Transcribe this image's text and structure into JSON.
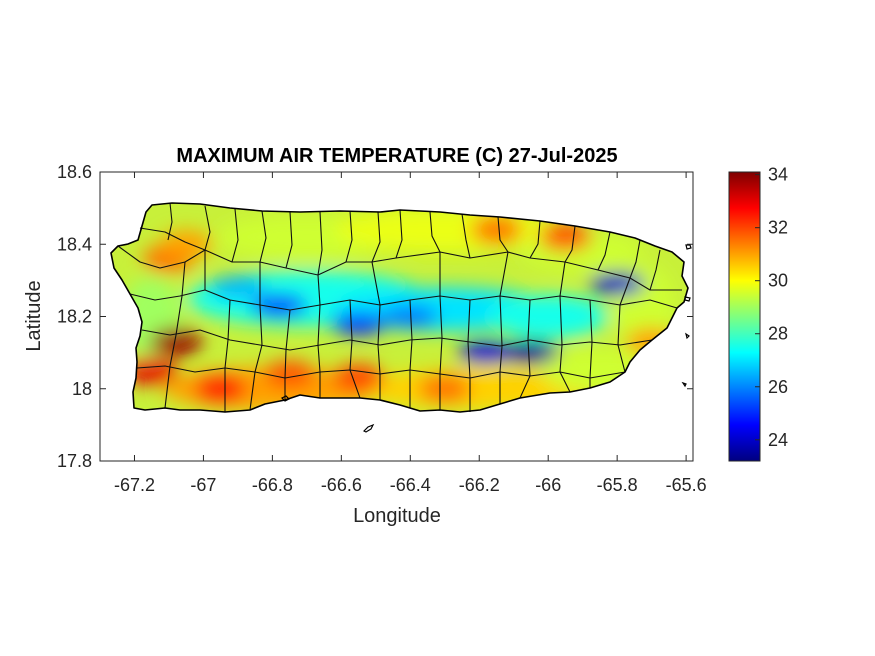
{
  "chart_data": {
    "type": "heatmap",
    "title": "MAXIMUM AIR TEMPERATURE (C) 27-Jul-2025",
    "xlabel": "Longitude",
    "ylabel": "Latitude",
    "xlim": [
      -67.3,
      -65.58
    ],
    "ylim": [
      17.8,
      18.6
    ],
    "x_ticks": [
      -67.2,
      -67,
      -66.8,
      -66.6,
      -66.4,
      -66.2,
      -66,
      -65.8,
      -65.6
    ],
    "x_tick_labels": [
      "-67.2",
      "-67",
      "-66.8",
      "-66.6",
      "-66.4",
      "-66.2",
      "-66",
      "-65.8",
      "-65.6"
    ],
    "y_ticks": [
      17.8,
      18,
      18.2,
      18.4,
      18.6
    ],
    "y_tick_labels": [
      "17.8",
      "18",
      "18.2",
      "18.4",
      "18.6"
    ],
    "colorbar": {
      "colormap": "jet",
      "min": 23.2,
      "max": 34.1,
      "ticks": [
        24,
        26,
        28,
        30,
        32,
        34
      ],
      "tick_labels": [
        "24",
        "26",
        "28",
        "30",
        "32",
        "34"
      ],
      "colors": [
        "#00007f",
        "#0000ff",
        "#007fff",
        "#00ffff",
        "#7fff7f",
        "#ffff00",
        "#ff7f00",
        "#ff0000",
        "#7f0000"
      ]
    },
    "grid": false,
    "hotspots": [
      {
        "lon": -67.08,
        "lat": 18.13,
        "value": 33.8
      },
      {
        "lon": -67.15,
        "lat": 18.05,
        "value": 33.0
      },
      {
        "lon": -66.95,
        "lat": 18.0,
        "value": 32.5
      },
      {
        "lon": -66.55,
        "lat": 18.03,
        "value": 32.0
      },
      {
        "lon": -66.75,
        "lat": 18.04,
        "value": 31.8
      },
      {
        "lon": -66.3,
        "lat": 18.0,
        "value": 31.5
      },
      {
        "lon": -65.95,
        "lat": 18.42,
        "value": 31.8
      },
      {
        "lon": -66.15,
        "lat": 18.44,
        "value": 31.5
      },
      {
        "lon": -67.1,
        "lat": 18.36,
        "value": 31.5
      },
      {
        "lon": -67.05,
        "lat": 18.4,
        "value": 31.0
      },
      {
        "lon": -65.7,
        "lat": 18.13,
        "value": 31.0
      }
    ],
    "coldspots": [
      {
        "lon": -66.05,
        "lat": 18.1,
        "value": 23.5
      },
      {
        "lon": -66.18,
        "lat": 18.1,
        "value": 24.2
      },
      {
        "lon": -65.8,
        "lat": 18.29,
        "value": 24.0
      },
      {
        "lon": -66.55,
        "lat": 18.18,
        "value": 25.0
      },
      {
        "lon": -66.78,
        "lat": 18.23,
        "value": 24.8
      },
      {
        "lon": -66.4,
        "lat": 18.2,
        "value": 25.8
      },
      {
        "lon": -66.9,
        "lat": 18.28,
        "value": 26.5
      }
    ]
  }
}
